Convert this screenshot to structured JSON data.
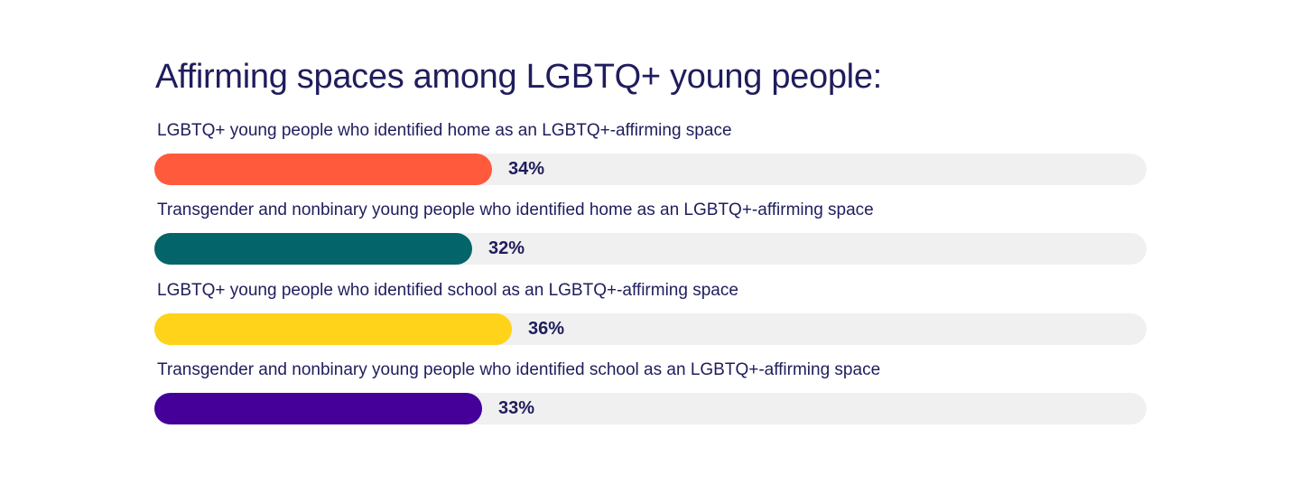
{
  "chart_data": {
    "type": "bar",
    "orientation": "horizontal",
    "title": "Affirming spaces among LGBTQ+ young people:",
    "categories": [
      "LGBTQ+ young people who identified home as an LGBTQ+-affirming space",
      "Transgender and nonbinary young people who identified home as an LGBTQ+-affirming space",
      "LGBTQ+ young people who identified school as an LGBTQ+-affirming space",
      "Transgender and nonbinary young people who identified school as an LGBTQ+-affirming space"
    ],
    "values": [
      34,
      32,
      36,
      33
    ],
    "value_labels": [
      "34%",
      "32%",
      "36%",
      "33%"
    ],
    "unit": "%",
    "xlim": [
      0,
      100
    ],
    "colors": [
      "#ff5a3c",
      "#03646a",
      "#fed319",
      "#440099"
    ],
    "track_color": "#f0f0f0",
    "grid": false,
    "legend": "none"
  }
}
